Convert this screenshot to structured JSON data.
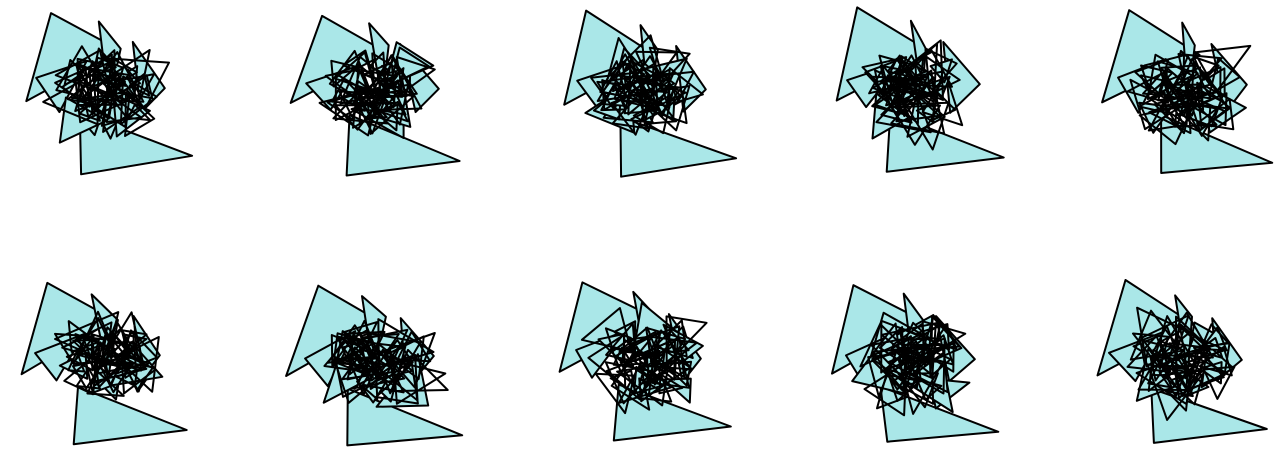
{
  "colors": {
    "fill": "#aae7e8",
    "stroke": "#000000",
    "background": "#ffffff"
  },
  "grid": {
    "rows": 2,
    "cols": 5
  },
  "cluster": {
    "triangle_count": 45,
    "outline_only_after": 9
  }
}
